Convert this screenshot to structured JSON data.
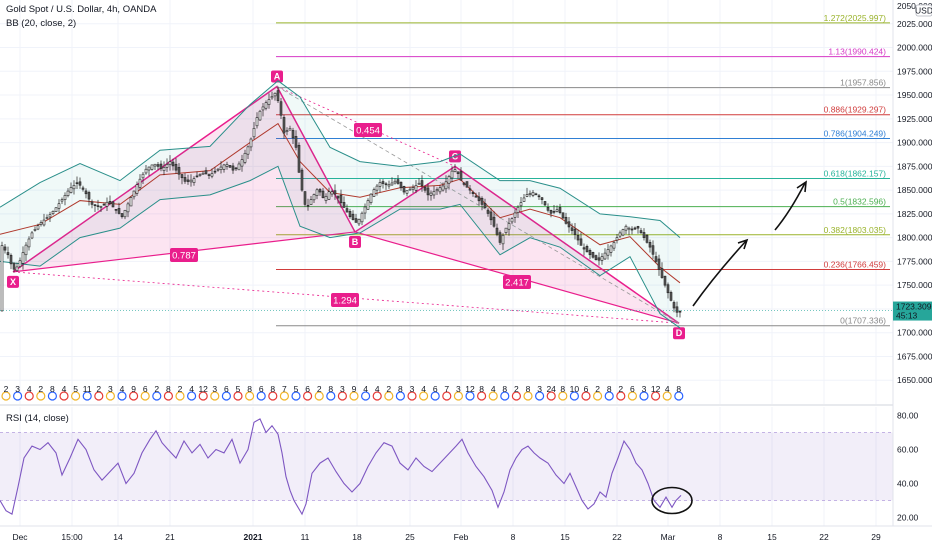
{
  "header": {
    "symbol": "Gold Spot / U.S. Dollar, 4h, OANDA",
    "indicator": "BB (20, close, 2)",
    "rsi_label": "RSI (14, close)",
    "currency": "USD",
    "axis_top": "2050.000"
  },
  "chart_data": [
    {
      "type": "candlestick",
      "title": "Gold Spot / U.S. Dollar, 4h, OANDA",
      "ylim": [
        1625,
        2050
      ],
      "y_ticks": [
        1650,
        1675,
        1700,
        1725,
        1750,
        1775,
        1800,
        1825,
        1850,
        1875,
        1900,
        1925,
        1950,
        1975,
        2000,
        2025
      ],
      "y_tick_labels": [
        "1650.000",
        "1675.000",
        "1700.000",
        "1725.000",
        "1750.000",
        "1775.000",
        "1800.000",
        "1825.000",
        "1850.000",
        "1875.000",
        "1900.000",
        "1925.000",
        "1950.000",
        "1975.000",
        "2000.000",
        "2025.000"
      ],
      "x_ticks": [
        "Dec",
        "15:00",
        "14",
        "21",
        "2021",
        "11",
        "18",
        "25",
        "Feb",
        "8",
        "15",
        "22",
        "Mar",
        "8",
        "15",
        "22",
        "29"
      ],
      "last_price": "1723.309",
      "countdown": "45:13",
      "close_path": [
        [
          0,
          1795
        ],
        [
          8,
          1782
        ],
        [
          13,
          1766
        ],
        [
          18,
          1770
        ],
        [
          25,
          1790
        ],
        [
          32,
          1805
        ],
        [
          40,
          1815
        ],
        [
          48,
          1822
        ],
        [
          55,
          1830
        ],
        [
          62,
          1840
        ],
        [
          70,
          1852
        ],
        [
          78,
          1858
        ],
        [
          85,
          1848
        ],
        [
          92,
          1835
        ],
        [
          100,
          1832
        ],
        [
          108,
          1838
        ],
        [
          115,
          1830
        ],
        [
          122,
          1822
        ],
        [
          130,
          1840
        ],
        [
          138,
          1858
        ],
        [
          146,
          1872
        ],
        [
          154,
          1878
        ],
        [
          162,
          1872
        ],
        [
          170,
          1880
        ],
        [
          178,
          1868
        ],
        [
          186,
          1858
        ],
        [
          194,
          1862
        ],
        [
          202,
          1868
        ],
        [
          210,
          1866
        ],
        [
          218,
          1872
        ],
        [
          226,
          1878
        ],
        [
          234,
          1870
        ],
        [
          242,
          1882
        ],
        [
          250,
          1900
        ],
        [
          258,
          1930
        ],
        [
          266,
          1942
        ],
        [
          276,
          1953
        ],
        [
          280,
          1935
        ],
        [
          284,
          1910
        ],
        [
          290,
          1915
        ],
        [
          296,
          1895
        ],
        [
          300,
          1860
        ],
        [
          306,
          1830
        ],
        [
          312,
          1842
        ],
        [
          318,
          1852
        ],
        [
          324,
          1840
        ],
        [
          330,
          1850
        ],
        [
          336,
          1845
        ],
        [
          342,
          1835
        ],
        [
          350,
          1822
        ],
        [
          357,
          1815
        ],
        [
          364,
          1830
        ],
        [
          372,
          1848
        ],
        [
          380,
          1858
        ],
        [
          388,
          1855
        ],
        [
          396,
          1860
        ],
        [
          404,
          1848
        ],
        [
          412,
          1852
        ],
        [
          420,
          1858
        ],
        [
          428,
          1845
        ],
        [
          436,
          1850
        ],
        [
          444,
          1855
        ],
        [
          452,
          1870
        ],
        [
          456,
          1872
        ],
        [
          462,
          1858
        ],
        [
          470,
          1850
        ],
        [
          478,
          1840
        ],
        [
          486,
          1830
        ],
        [
          494,
          1812
        ],
        [
          500,
          1795
        ],
        [
          506,
          1810
        ],
        [
          512,
          1820
        ],
        [
          518,
          1832
        ],
        [
          526,
          1845
        ],
        [
          534,
          1848
        ],
        [
          542,
          1840
        ],
        [
          550,
          1825
        ],
        [
          558,
          1830
        ],
        [
          566,
          1815
        ],
        [
          574,
          1805
        ],
        [
          582,
          1790
        ],
        [
          590,
          1782
        ],
        [
          598,
          1775
        ],
        [
          606,
          1785
        ],
        [
          614,
          1795
        ],
        [
          620,
          1805
        ],
        [
          626,
          1812
        ],
        [
          632,
          1808
        ],
        [
          638,
          1810
        ],
        [
          644,
          1800
        ],
        [
          650,
          1790
        ],
        [
          656,
          1775
        ],
        [
          662,
          1758
        ],
        [
          668,
          1742
        ],
        [
          674,
          1726
        ],
        [
          678,
          1720
        ],
        [
          681,
          1723
        ]
      ],
      "bb_upper_path": [
        [
          0,
          1832
        ],
        [
          40,
          1858
        ],
        [
          80,
          1878
        ],
        [
          120,
          1860
        ],
        [
          160,
          1892
        ],
        [
          210,
          1896
        ],
        [
          250,
          1940
        ],
        [
          278,
          1965
        ],
        [
          300,
          1948
        ],
        [
          330,
          1895
        ],
        [
          360,
          1880
        ],
        [
          400,
          1875
        ],
        [
          440,
          1880
        ],
        [
          460,
          1888
        ],
        [
          500,
          1860
        ],
        [
          530,
          1860
        ],
        [
          560,
          1852
        ],
        [
          600,
          1825
        ],
        [
          630,
          1822
        ],
        [
          660,
          1818
        ],
        [
          680,
          1800
        ]
      ],
      "bb_lower_path": [
        [
          0,
          1775
        ],
        [
          40,
          1770
        ],
        [
          80,
          1800
        ],
        [
          120,
          1810
        ],
        [
          160,
          1840
        ],
        [
          210,
          1845
        ],
        [
          250,
          1860
        ],
        [
          278,
          1875
        ],
        [
          300,
          1812
        ],
        [
          330,
          1800
        ],
        [
          360,
          1805
        ],
        [
          400,
          1830
        ],
        [
          440,
          1830
        ],
        [
          460,
          1835
        ],
        [
          500,
          1782
        ],
        [
          530,
          1800
        ],
        [
          560,
          1790
        ],
        [
          600,
          1760
        ],
        [
          630,
          1780
        ],
        [
          660,
          1720
        ],
        [
          680,
          1705
        ]
      ],
      "fib_levels": [
        {
          "label": "1.272(2025.997)",
          "price": 2025.997,
          "color": "#9ab32b"
        },
        {
          "label": "1.13(1990.424)",
          "price": 1990.424,
          "color": "#d63ac6"
        },
        {
          "label": "1(1957.856)",
          "price": 1957.856,
          "color": "#8a8a8a"
        },
        {
          "label": "0.886(1929.297)",
          "price": 1929.297,
          "color": "#d03c3c"
        },
        {
          "label": "0.786(1904.249)",
          "price": 1904.249,
          "color": "#2f7fd4"
        },
        {
          "label": "0.618(1862.157)",
          "price": 1862.157,
          "color": "#26b39a"
        },
        {
          "label": "0.5(1832.596)",
          "price": 1832.596,
          "color": "#4caf50"
        },
        {
          "label": "0.382(1803.035)",
          "price": 1803.035,
          "color": "#9ab32b"
        },
        {
          "label": "0.236(1766.459)",
          "price": 1766.459,
          "color": "#d03c3c"
        },
        {
          "label": "0(1707.336)",
          "price": 1707.336,
          "color": "#8a8a8a"
        }
      ],
      "harmonic": {
        "points": [
          {
            "label": "X",
            "price": 1764
          },
          {
            "label": "A",
            "price": 1959
          },
          {
            "label": "B",
            "price": 1806
          },
          {
            "label": "C",
            "price": 1875
          },
          {
            "label": "D",
            "price": 1710
          }
        ],
        "ratios": [
          "0.454",
          "0.787",
          "2.417",
          "1.294"
        ]
      },
      "event_markers": [
        "2",
        "3",
        "4",
        "2",
        "8",
        "4",
        "5",
        "11",
        "2",
        "3",
        "4",
        "9",
        "6",
        "2",
        "8",
        "2",
        "4",
        "12",
        "3",
        "6",
        "5",
        "8",
        "6",
        "8",
        "7",
        "5",
        "6",
        "2",
        "8",
        "3",
        "9",
        "4",
        "4",
        "2",
        "8",
        "3",
        "4",
        "6",
        "7",
        "3",
        "12",
        "8",
        "4",
        "8",
        "2",
        "8",
        "3",
        "24",
        "8",
        "10",
        "6",
        "2",
        "8",
        "2",
        "6",
        "3",
        "12",
        "4",
        "8"
      ]
    },
    {
      "type": "line",
      "title": "RSI (14, close)",
      "ylim": [
        15,
        85
      ],
      "y_ticks": [
        20,
        40,
        60,
        80
      ],
      "y_tick_labels": [
        "20.00",
        "40.00",
        "60.00",
        "80.00"
      ],
      "band": [
        30,
        70
      ],
      "series": [
        {
          "values": [
            [
              0,
              30
            ],
            [
              6,
              24
            ],
            [
              12,
              22
            ],
            [
              18,
              38
            ],
            [
              24,
              55
            ],
            [
              32,
              62
            ],
            [
              40,
              60
            ],
            [
              48,
              64
            ],
            [
              56,
              58
            ],
            [
              62,
              45
            ],
            [
              70,
              55
            ],
            [
              78,
              66
            ],
            [
              86,
              60
            ],
            [
              94,
              48
            ],
            [
              102,
              42
            ],
            [
              110,
              47
            ],
            [
              118,
              52
            ],
            [
              126,
              40
            ],
            [
              134,
              46
            ],
            [
              142,
              58
            ],
            [
              150,
              66
            ],
            [
              156,
              71
            ],
            [
              162,
              64
            ],
            [
              168,
              60
            ],
            [
              176,
              55
            ],
            [
              184,
              65
            ],
            [
              192,
              58
            ],
            [
              200,
              63
            ],
            [
              208,
              55
            ],
            [
              216,
              60
            ],
            [
              224,
              58
            ],
            [
              232,
              66
            ],
            [
              240,
              52
            ],
            [
              248,
              60
            ],
            [
              254,
              76
            ],
            [
              260,
              78
            ],
            [
              266,
              70
            ],
            [
              272,
              74
            ],
            [
              278,
              69
            ],
            [
              282,
              58
            ],
            [
              286,
              44
            ],
            [
              290,
              36
            ],
            [
              294,
              30
            ],
            [
              298,
              26
            ],
            [
              302,
              22
            ],
            [
              306,
              28
            ],
            [
              312,
              46
            ],
            [
              320,
              52
            ],
            [
              328,
              55
            ],
            [
              336,
              47
            ],
            [
              344,
              40
            ],
            [
              352,
              35
            ],
            [
              360,
              40
            ],
            [
              368,
              50
            ],
            [
              376,
              58
            ],
            [
              384,
              64
            ],
            [
              392,
              62
            ],
            [
              400,
              52
            ],
            [
              408,
              48
            ],
            [
              416,
              55
            ],
            [
              424,
              50
            ],
            [
              432,
              47
            ],
            [
              440,
              52
            ],
            [
              448,
              57
            ],
            [
              456,
              62
            ],
            [
              462,
              66
            ],
            [
              468,
              58
            ],
            [
              476,
              50
            ],
            [
              484,
              44
            ],
            [
              492,
              36
            ],
            [
              498,
              26
            ],
            [
              504,
              35
            ],
            [
              510,
              48
            ],
            [
              516,
              55
            ],
            [
              522,
              60
            ],
            [
              528,
              62
            ],
            [
              534,
              58
            ],
            [
              540,
              55
            ],
            [
              548,
              52
            ],
            [
              556,
              45
            ],
            [
              564,
              40
            ],
            [
              570,
              46
            ],
            [
              576,
              38
            ],
            [
              582,
              30
            ],
            [
              588,
              25
            ],
            [
              594,
              28
            ],
            [
              600,
              35
            ],
            [
              606,
              32
            ],
            [
              612,
              46
            ],
            [
              618,
              55
            ],
            [
              624,
              65
            ],
            [
              630,
              60
            ],
            [
              636,
              52
            ],
            [
              642,
              48
            ],
            [
              648,
              40
            ],
            [
              654,
              30
            ],
            [
              660,
              26
            ],
            [
              666,
              32
            ],
            [
              672,
              26
            ],
            [
              676,
              30
            ],
            [
              681,
              33
            ]
          ]
        }
      ]
    }
  ]
}
